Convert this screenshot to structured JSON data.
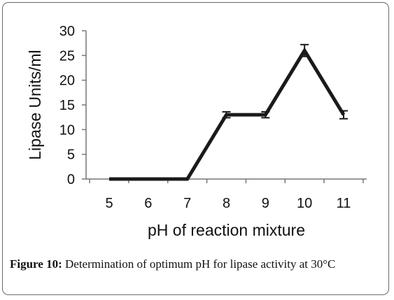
{
  "chart_data": {
    "type": "line",
    "x": [
      5,
      6,
      7,
      8,
      9,
      10,
      11
    ],
    "series": [
      {
        "values": [
          0,
          0,
          0,
          13,
          13,
          26,
          13
        ],
        "error": [
          0,
          0,
          0,
          0.6,
          0.6,
          1.2,
          0.8
        ]
      }
    ],
    "xlabel": "pH of reaction mixture",
    "ylabel": "Lipase Units/ml",
    "xticks": [
      "5",
      "6",
      "7",
      "8",
      "9",
      "10",
      "11"
    ],
    "yticks": [
      "0",
      "5",
      "10",
      "15",
      "20",
      "25",
      "30"
    ],
    "ylim": [
      0,
      30
    ],
    "grid": false,
    "line_color": "#1a1a1a"
  },
  "caption": {
    "label": "Figure 10:",
    "text": " Determination of optimum pH for lipase activity at 30°C"
  }
}
